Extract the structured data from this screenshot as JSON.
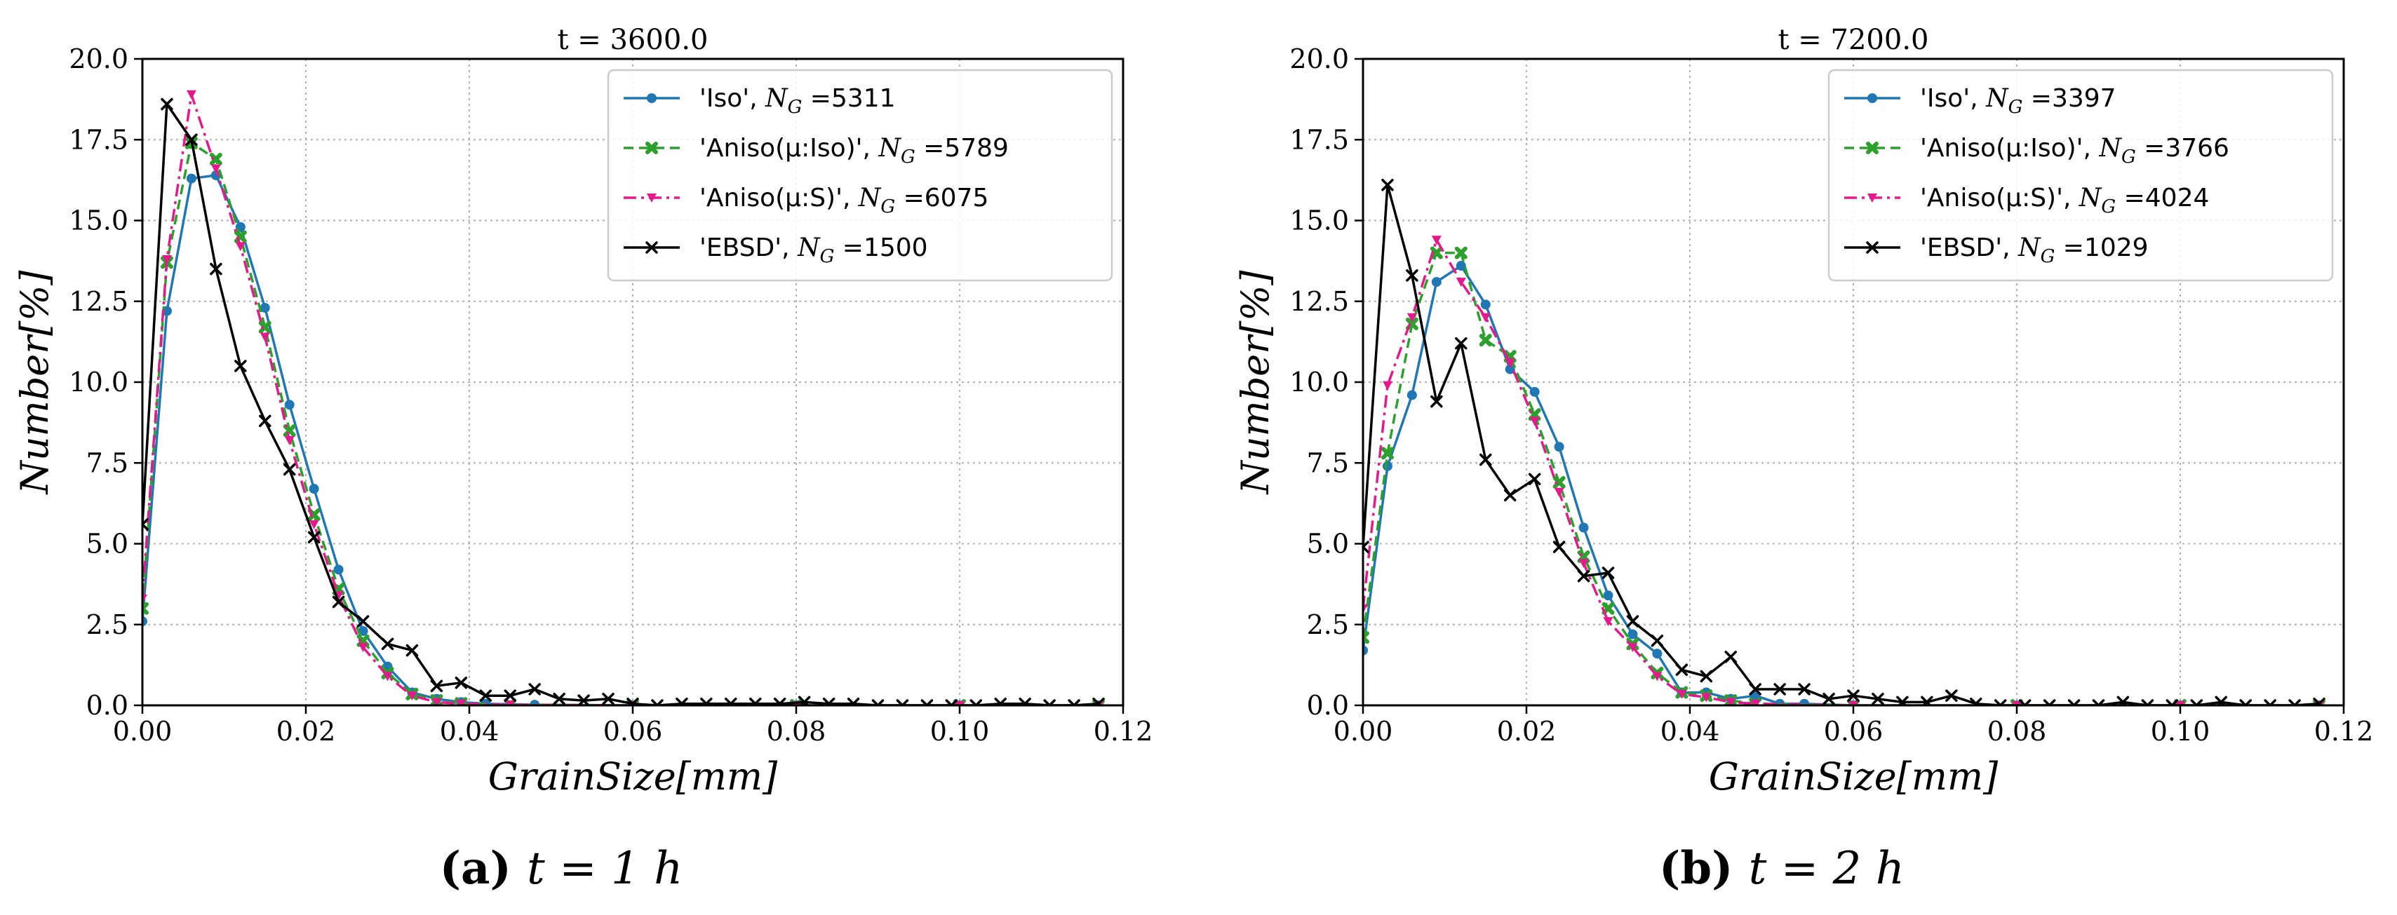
{
  "colors": {
    "Iso": "#1f77b4",
    "AnisoIso": "#2ca02c",
    "AnisoS": "#e6198c",
    "EBSD": "#000000",
    "grid": "#b0b0b0"
  },
  "chart_data": [
    {
      "type": "line",
      "title": "t = 3600.0",
      "xlabel": "GrainSize[mm]",
      "ylabel": "Number[%]",
      "xlim": [
        0.0,
        0.12
      ],
      "ylim": [
        0.0,
        20.0
      ],
      "xticks": [
        "0.00",
        "0.02",
        "0.04",
        "0.06",
        "0.08",
        "0.10",
        "0.12"
      ],
      "yticks": [
        "0.0",
        "2.5",
        "5.0",
        "7.5",
        "10.0",
        "12.5",
        "15.0",
        "17.5",
        "20.0"
      ],
      "grid": true,
      "legend_position": "top-right",
      "caption": {
        "tag": "(a)",
        "expr": "t = 1 h"
      },
      "series": [
        {
          "name": "'Iso'",
          "ng_label": "N",
          "ng_sub": "G",
          "ng_value": "=5311",
          "style": "solid",
          "marker": "dot",
          "colorKey": "Iso",
          "points": [
            [
              0.0,
              2.6
            ],
            [
              0.003,
              12.2
            ],
            [
              0.006,
              16.3
            ],
            [
              0.009,
              16.4
            ],
            [
              0.012,
              14.8
            ],
            [
              0.015,
              12.3
            ],
            [
              0.018,
              9.3
            ],
            [
              0.021,
              6.7
            ],
            [
              0.024,
              4.2
            ],
            [
              0.027,
              2.3
            ],
            [
              0.03,
              1.2
            ],
            [
              0.033,
              0.4
            ],
            [
              0.036,
              0.2
            ],
            [
              0.039,
              0.1
            ],
            [
              0.042,
              0.05
            ],
            [
              0.048,
              0.02
            ],
            [
              0.06,
              0.0
            ],
            [
              0.08,
              0.0
            ],
            [
              0.1,
              0.0
            ],
            [
              0.117,
              0.0
            ]
          ]
        },
        {
          "name": "'Aniso(μ:Iso)'",
          "ng_label": "N",
          "ng_sub": "G",
          "ng_value": "=5789",
          "style": "dashed",
          "marker": "x-bold",
          "colorKey": "AnisoIso",
          "points": [
            [
              0.0,
              3.0
            ],
            [
              0.003,
              13.7
            ],
            [
              0.006,
              17.4
            ],
            [
              0.009,
              16.9
            ],
            [
              0.012,
              14.5
            ],
            [
              0.015,
              11.7
            ],
            [
              0.018,
              8.5
            ],
            [
              0.021,
              5.9
            ],
            [
              0.024,
              3.6
            ],
            [
              0.027,
              2.0
            ],
            [
              0.03,
              1.0
            ],
            [
              0.033,
              0.35
            ],
            [
              0.036,
              0.15
            ],
            [
              0.039,
              0.06
            ],
            [
              0.045,
              0.02
            ],
            [
              0.06,
              0.0
            ],
            [
              0.08,
              0.0
            ],
            [
              0.1,
              0.0
            ],
            [
              0.117,
              0.0
            ]
          ]
        },
        {
          "name": "'Aniso(μ:S)'",
          "ng_label": "N",
          "ng_sub": "G",
          "ng_value": "=6075",
          "style": "dashdot",
          "marker": "tri",
          "colorKey": "AnisoS",
          "points": [
            [
              0.0,
              3.3
            ],
            [
              0.003,
              13.8
            ],
            [
              0.006,
              18.9
            ],
            [
              0.009,
              16.6
            ],
            [
              0.012,
              14.2
            ],
            [
              0.015,
              11.4
            ],
            [
              0.018,
              8.2
            ],
            [
              0.021,
              5.6
            ],
            [
              0.024,
              3.4
            ],
            [
              0.027,
              1.8
            ],
            [
              0.03,
              0.9
            ],
            [
              0.033,
              0.3
            ],
            [
              0.036,
              0.1
            ],
            [
              0.039,
              0.05
            ],
            [
              0.045,
              0.02
            ],
            [
              0.06,
              0.0
            ],
            [
              0.08,
              0.0
            ],
            [
              0.1,
              0.0
            ],
            [
              0.117,
              0.0
            ]
          ]
        },
        {
          "name": "'EBSD'",
          "ng_label": "N",
          "ng_sub": "G",
          "ng_value": "=1500",
          "style": "solid",
          "marker": "x",
          "colorKey": "EBSD",
          "points": [
            [
              0.0,
              5.6
            ],
            [
              0.003,
              18.6
            ],
            [
              0.006,
              17.5
            ],
            [
              0.009,
              13.5
            ],
            [
              0.012,
              10.5
            ],
            [
              0.015,
              8.8
            ],
            [
              0.018,
              7.3
            ],
            [
              0.021,
              5.2
            ],
            [
              0.024,
              3.2
            ],
            [
              0.027,
              2.6
            ],
            [
              0.03,
              1.9
            ],
            [
              0.033,
              1.7
            ],
            [
              0.036,
              0.6
            ],
            [
              0.039,
              0.7
            ],
            [
              0.042,
              0.3
            ],
            [
              0.045,
              0.3
            ],
            [
              0.048,
              0.5
            ],
            [
              0.051,
              0.2
            ],
            [
              0.054,
              0.15
            ],
            [
              0.057,
              0.2
            ],
            [
              0.06,
              0.05
            ],
            [
              0.063,
              0.0
            ],
            [
              0.066,
              0.05
            ],
            [
              0.069,
              0.05
            ],
            [
              0.072,
              0.05
            ],
            [
              0.075,
              0.05
            ],
            [
              0.078,
              0.05
            ],
            [
              0.081,
              0.1
            ],
            [
              0.084,
              0.05
            ],
            [
              0.087,
              0.05
            ],
            [
              0.09,
              0.0
            ],
            [
              0.093,
              0.0
            ],
            [
              0.096,
              0.0
            ],
            [
              0.099,
              0.0
            ],
            [
              0.102,
              0.0
            ],
            [
              0.105,
              0.05
            ],
            [
              0.108,
              0.05
            ],
            [
              0.111,
              0.0
            ],
            [
              0.114,
              0.0
            ],
            [
              0.117,
              0.05
            ]
          ]
        }
      ]
    },
    {
      "type": "line",
      "title": "t = 7200.0",
      "xlabel": "GrainSize[mm]",
      "ylabel": "Number[%]",
      "xlim": [
        0.0,
        0.12
      ],
      "ylim": [
        0.0,
        20.0
      ],
      "xticks": [
        "0.00",
        "0.02",
        "0.04",
        "0.06",
        "0.08",
        "0.10",
        "0.12"
      ],
      "yticks": [
        "0.0",
        "2.5",
        "5.0",
        "7.5",
        "10.0",
        "12.5",
        "15.0",
        "17.5",
        "20.0"
      ],
      "grid": true,
      "legend_position": "top-right",
      "caption": {
        "tag": "(b)",
        "expr": "t = 2 h"
      },
      "series": [
        {
          "name": "'Iso'",
          "ng_label": "N",
          "ng_sub": "G",
          "ng_value": "=3397",
          "style": "solid",
          "marker": "dot",
          "colorKey": "Iso",
          "points": [
            [
              0.0,
              1.7
            ],
            [
              0.003,
              7.4
            ],
            [
              0.006,
              9.6
            ],
            [
              0.009,
              13.1
            ],
            [
              0.012,
              13.6
            ],
            [
              0.015,
              12.4
            ],
            [
              0.018,
              10.4
            ],
            [
              0.021,
              9.7
            ],
            [
              0.024,
              8.0
            ],
            [
              0.027,
              5.5
            ],
            [
              0.03,
              3.4
            ],
            [
              0.033,
              2.2
            ],
            [
              0.036,
              1.6
            ],
            [
              0.039,
              0.4
            ],
            [
              0.042,
              0.4
            ],
            [
              0.045,
              0.2
            ],
            [
              0.048,
              0.3
            ],
            [
              0.051,
              0.05
            ],
            [
              0.054,
              0.05
            ],
            [
              0.06,
              0.0
            ],
            [
              0.08,
              0.0
            ],
            [
              0.1,
              0.0
            ],
            [
              0.117,
              0.0
            ]
          ]
        },
        {
          "name": "'Aniso(μ:Iso)'",
          "ng_label": "N",
          "ng_sub": "G",
          "ng_value": "=3766",
          "style": "dashed",
          "marker": "x-bold",
          "colorKey": "AnisoIso",
          "points": [
            [
              0.0,
              2.1
            ],
            [
              0.003,
              7.8
            ],
            [
              0.006,
              11.8
            ],
            [
              0.009,
              14.0
            ],
            [
              0.012,
              14.0
            ],
            [
              0.015,
              11.3
            ],
            [
              0.018,
              10.8
            ],
            [
              0.021,
              9.0
            ],
            [
              0.024,
              6.9
            ],
            [
              0.027,
              4.6
            ],
            [
              0.03,
              3.0
            ],
            [
              0.033,
              1.9
            ],
            [
              0.036,
              1.0
            ],
            [
              0.039,
              0.4
            ],
            [
              0.042,
              0.3
            ],
            [
              0.045,
              0.15
            ],
            [
              0.048,
              0.05
            ],
            [
              0.06,
              0.0
            ],
            [
              0.08,
              0.0
            ],
            [
              0.1,
              0.0
            ],
            [
              0.117,
              0.0
            ]
          ]
        },
        {
          "name": "'Aniso(μ:S)'",
          "ng_label": "N",
          "ng_sub": "G",
          "ng_value": "=4024",
          "style": "dashdot",
          "marker": "tri",
          "colorKey": "AnisoS",
          "points": [
            [
              0.0,
              3.0
            ],
            [
              0.003,
              9.9
            ],
            [
              0.006,
              12.0
            ],
            [
              0.009,
              14.4
            ],
            [
              0.012,
              13.1
            ],
            [
              0.015,
              12.0
            ],
            [
              0.018,
              10.6
            ],
            [
              0.021,
              8.8
            ],
            [
              0.024,
              6.6
            ],
            [
              0.027,
              4.4
            ],
            [
              0.03,
              2.6
            ],
            [
              0.033,
              1.8
            ],
            [
              0.036,
              0.9
            ],
            [
              0.039,
              0.35
            ],
            [
              0.042,
              0.25
            ],
            [
              0.045,
              0.1
            ],
            [
              0.048,
              0.05
            ],
            [
              0.06,
              0.0
            ],
            [
              0.08,
              0.0
            ],
            [
              0.1,
              0.0
            ],
            [
              0.117,
              0.0
            ]
          ]
        },
        {
          "name": "'EBSD'",
          "ng_label": "N",
          "ng_sub": "G",
          "ng_value": "=1029",
          "style": "solid",
          "marker": "x",
          "colorKey": "EBSD",
          "points": [
            [
              0.0,
              4.9
            ],
            [
              0.003,
              16.1
            ],
            [
              0.006,
              13.3
            ],
            [
              0.009,
              9.4
            ],
            [
              0.012,
              11.2
            ],
            [
              0.015,
              7.6
            ],
            [
              0.018,
              6.5
            ],
            [
              0.021,
              7.0
            ],
            [
              0.024,
              4.9
            ],
            [
              0.027,
              4.0
            ],
            [
              0.03,
              4.1
            ],
            [
              0.033,
              2.6
            ],
            [
              0.036,
              2.0
            ],
            [
              0.039,
              1.1
            ],
            [
              0.042,
              0.9
            ],
            [
              0.045,
              1.5
            ],
            [
              0.048,
              0.5
            ],
            [
              0.051,
              0.5
            ],
            [
              0.054,
              0.5
            ],
            [
              0.057,
              0.2
            ],
            [
              0.06,
              0.3
            ],
            [
              0.063,
              0.2
            ],
            [
              0.066,
              0.1
            ],
            [
              0.069,
              0.1
            ],
            [
              0.072,
              0.3
            ],
            [
              0.075,
              0.05
            ],
            [
              0.078,
              0.0
            ],
            [
              0.081,
              0.0
            ],
            [
              0.084,
              0.0
            ],
            [
              0.087,
              0.0
            ],
            [
              0.09,
              0.0
            ],
            [
              0.093,
              0.1
            ],
            [
              0.096,
              0.0
            ],
            [
              0.099,
              0.0
            ],
            [
              0.102,
              0.0
            ],
            [
              0.105,
              0.1
            ],
            [
              0.108,
              0.0
            ],
            [
              0.111,
              0.0
            ],
            [
              0.114,
              0.0
            ],
            [
              0.117,
              0.05
            ]
          ]
        }
      ]
    }
  ]
}
